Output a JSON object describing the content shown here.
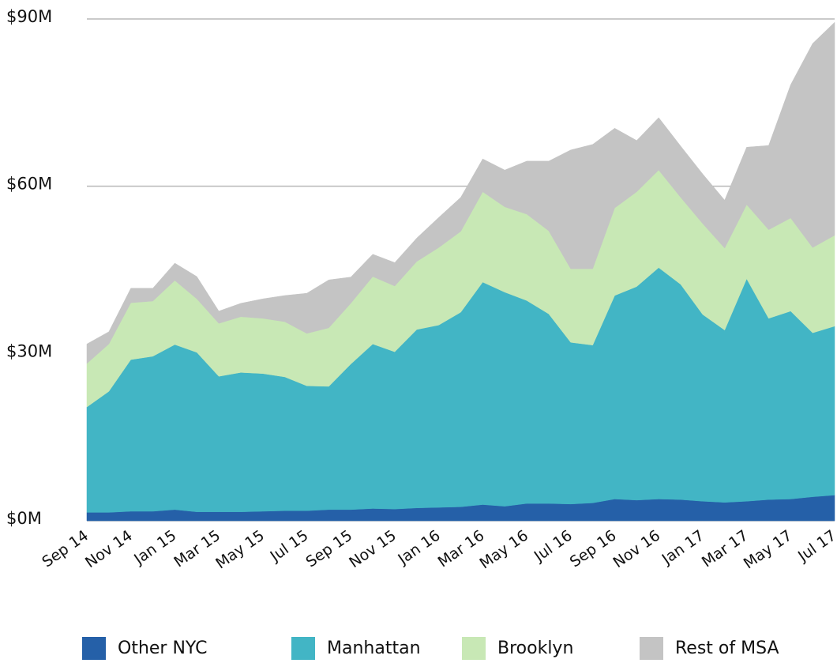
{
  "chart_data": {
    "type": "stacked_area",
    "categories": [
      "Sep 14",
      null,
      "Nov 14",
      null,
      "Jan 15",
      null,
      "Mar 15",
      null,
      "May 15",
      null,
      "Jul 15",
      null,
      "Sep 15",
      null,
      "Nov 15",
      null,
      "Jan 16",
      null,
      "Mar 16",
      null,
      "May 16",
      null,
      "Jul 16",
      null,
      "Sep 16",
      null,
      "Nov 16",
      null,
      "Jan 17",
      null,
      "Mar 17",
      null,
      "May 17",
      null,
      "Jul 17"
    ],
    "series": [
      {
        "name": "Other NYC",
        "color": "#2560a8",
        "values": [
          1.5,
          1.5,
          1.7,
          1.7,
          2.0,
          1.6,
          1.6,
          1.6,
          1.7,
          1.8,
          1.8,
          2.0,
          2.0,
          2.2,
          2.1,
          2.3,
          2.4,
          2.5,
          2.9,
          2.6,
          3.1,
          3.1,
          3.0,
          3.2,
          3.9,
          3.7,
          3.9,
          3.8,
          3.5,
          3.3,
          3.5,
          3.8,
          3.9,
          4.3,
          4.6
        ]
      },
      {
        "name": "Manhattan",
        "color": "#42b5c5",
        "values": [
          18.9,
          21.7,
          27.2,
          27.8,
          29.6,
          28.6,
          24.3,
          25.0,
          24.7,
          24.0,
          22.4,
          22.1,
          26.1,
          29.5,
          28.2,
          32.0,
          32.7,
          34.9,
          39.9,
          38.4,
          36.4,
          34.0,
          29.0,
          28.3,
          36.5,
          38.3,
          41.5,
          38.6,
          33.5,
          30.9,
          39.9,
          32.5,
          33.7,
          29.4,
          30.3
        ]
      },
      {
        "name": "Brooklyn",
        "color": "#c8e8b5",
        "values": [
          7.8,
          8.5,
          10.2,
          9.9,
          11.5,
          9.6,
          9.5,
          10.0,
          9.9,
          9.9,
          9.4,
          10.5,
          10.9,
          12.1,
          11.8,
          12.2,
          13.9,
          14.5,
          16.2,
          15.3,
          15.5,
          14.9,
          13.2,
          13.7,
          15.7,
          17.0,
          17.5,
          15.6,
          16.3,
          14.7,
          13.3,
          15.9,
          16.7,
          15.3,
          16.3
        ]
      },
      {
        "name": "Rest of MSA",
        "color": "#c4c4c4",
        "values": [
          3.5,
          2.2,
          2.6,
          2.3,
          3.1,
          4.0,
          2.2,
          2.4,
          3.5,
          4.7,
          7.2,
          8.6,
          4.7,
          4.0,
          4.2,
          4.2,
          5.4,
          6.1,
          5.9,
          6.6,
          9.5,
          12.5,
          21.3,
          22.3,
          14.3,
          9.2,
          9.4,
          9.2,
          8.9,
          8.6,
          10.3,
          15.1,
          23.9,
          36.6,
          38.2
        ]
      }
    ],
    "ylim": [
      0,
      90
    ],
    "yticks": [
      {
        "value": 0,
        "label": "$0M"
      },
      {
        "value": 30,
        "label": "$30M"
      },
      {
        "value": 60,
        "label": "$60M"
      },
      {
        "value": 90,
        "label": "$90M"
      }
    ],
    "grid": true,
    "legend": "bottom"
  }
}
